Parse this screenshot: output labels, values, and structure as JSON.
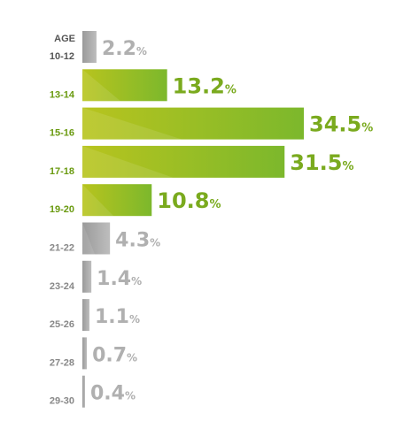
{
  "axis_header": "AGE",
  "colors": {
    "highlight": "#8ab82a",
    "highlight_label": "#7aaa1e",
    "muted": "#a8a8a8",
    "muted_label": "#b0b0b0",
    "category_dark": "#555555",
    "category_highlight": "#6a9a10",
    "category_muted": "#888888"
  },
  "chart_data": {
    "type": "bar",
    "orientation": "horizontal",
    "categories": [
      "10-12",
      "13-14",
      "15-16",
      "17-18",
      "19-20",
      "21-22",
      "23-24",
      "25-26",
      "27-28",
      "29-30"
    ],
    "values": [
      2.2,
      13.2,
      34.5,
      31.5,
      10.8,
      4.3,
      1.4,
      1.1,
      0.7,
      0.4
    ],
    "value_suffix": "%",
    "highlighted": [
      false,
      true,
      true,
      true,
      true,
      false,
      false,
      false,
      false,
      false
    ],
    "xlabel": "",
    "ylabel": "AGE",
    "xlim": [
      0,
      34.5
    ],
    "grid": false,
    "legend": "none"
  }
}
